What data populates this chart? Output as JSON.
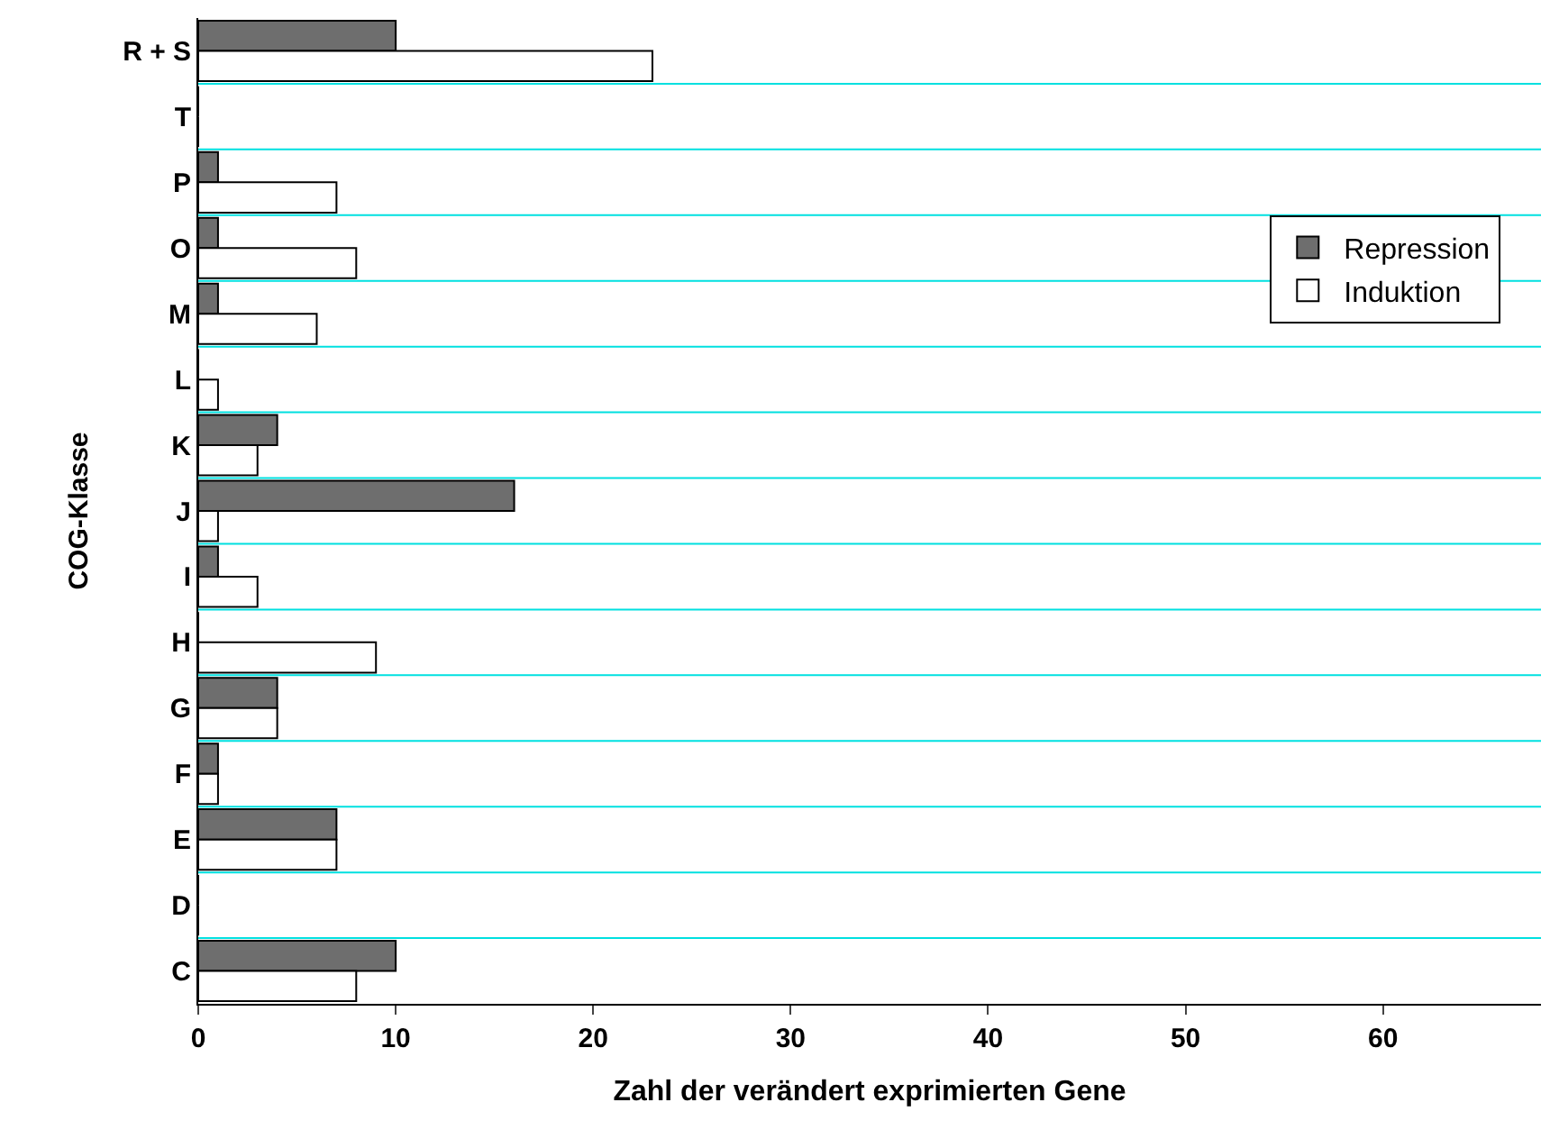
{
  "chart_data": {
    "type": "bar",
    "orientation": "horizontal",
    "xlabel": "Zahl der verändert exprimierten Gene",
    "ylabel": "COG-Klasse",
    "categories": [
      "R + S",
      "T",
      "P",
      "O",
      "M",
      "L",
      "K",
      "J",
      "I",
      "H",
      "G",
      "F",
      "E",
      "D",
      "C"
    ],
    "series": [
      {
        "name": "Repression",
        "color": "#6e6e6e",
        "values": [
          10,
          0,
          1,
          1,
          1,
          0,
          4,
          16,
          1,
          0,
          4,
          1,
          7,
          0,
          10
        ]
      },
      {
        "name": "Induktion",
        "color": "#ffffff",
        "values": [
          23,
          0,
          7,
          8,
          6,
          1,
          3,
          1,
          3,
          9,
          4,
          1,
          7,
          0,
          8
        ]
      }
    ],
    "xlim": [
      0,
      68
    ],
    "xticks": [
      0,
      10,
      20,
      30,
      40,
      50,
      60
    ],
    "grid": "y",
    "legend": "top right"
  }
}
